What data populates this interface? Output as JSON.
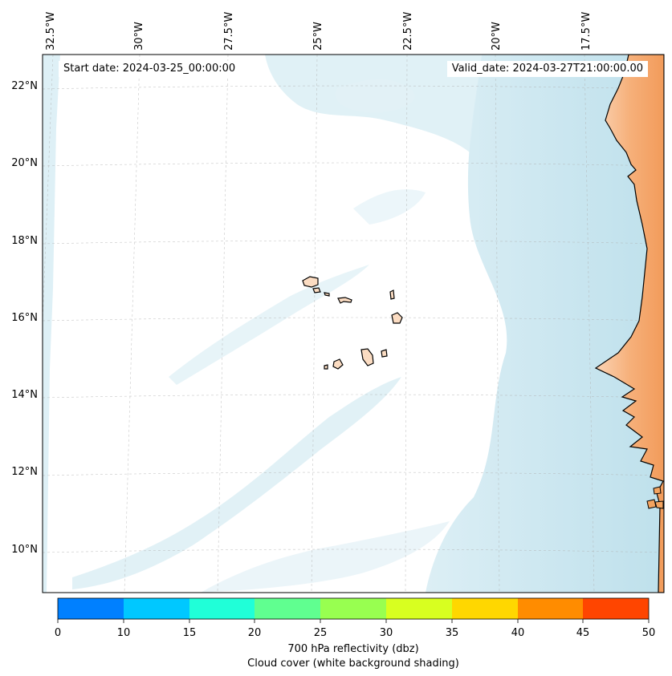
{
  "map": {
    "start_date_label": "Start date: 2024-03-25_00:00:00",
    "valid_date_label": "Valid_date: 2024-03-27T21:00:00.00",
    "lon_tick_labels": [
      "32.5°W",
      "30°W",
      "27.5°W",
      "25°W",
      "22.5°W",
      "20°W",
      "17.5°W"
    ],
    "lat_tick_labels": [
      "22°N",
      "20°N",
      "18°N",
      "16°N",
      "14°N",
      "12°N",
      "10°N"
    ],
    "colors": {
      "cloud_shading": "#a9d6e5",
      "land": "#f4a460",
      "coastline": "#000000",
      "gridline": "#b0b0b0"
    }
  },
  "colorbar": {
    "tick_labels": [
      "0",
      "10",
      "15",
      "20",
      "25",
      "30",
      "35",
      "40",
      "45",
      "50"
    ],
    "colors": [
      "#0080ff",
      "#00c8ff",
      "#20ffd8",
      "#60ff90",
      "#98ff50",
      "#d8ff20",
      "#ffd700",
      "#ff8c00",
      "#ff4500"
    ],
    "label_line1": "700 hPa reflectivity (dbz)",
    "label_line2": "Cloud cover (white background shading)"
  }
}
